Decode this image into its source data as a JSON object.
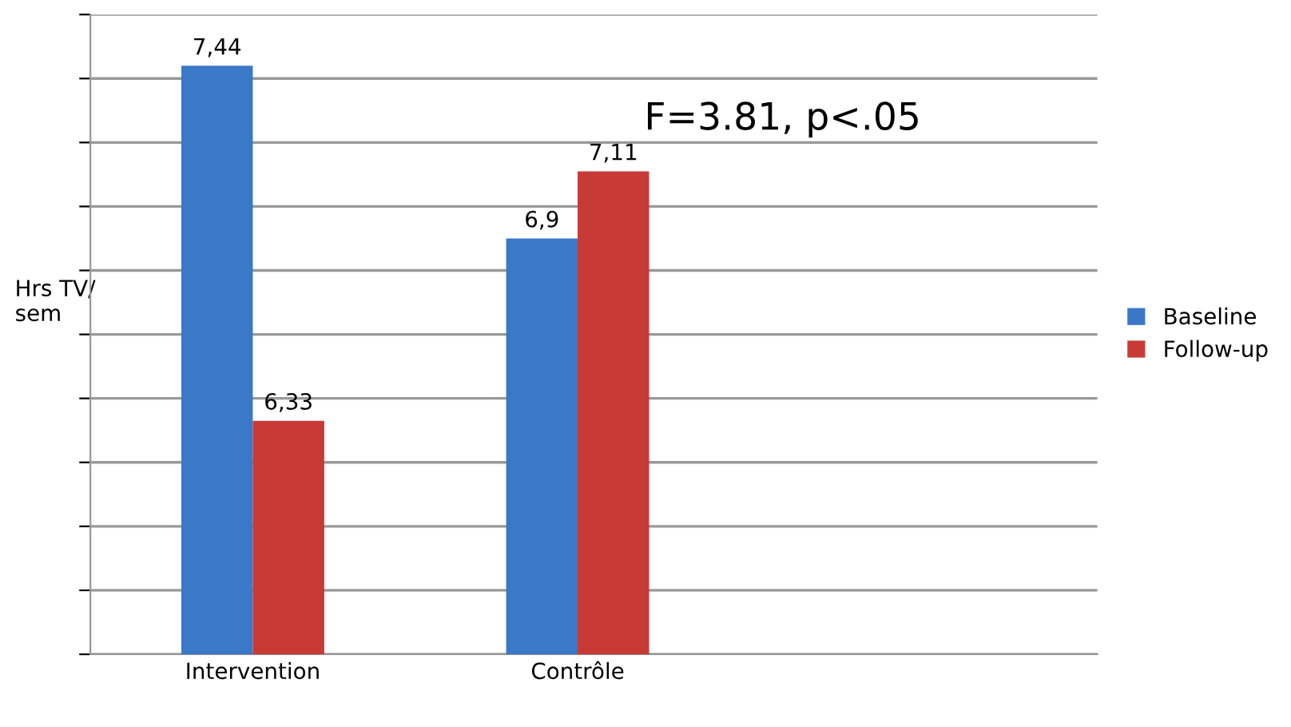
{
  "chart_data": {
    "type": "bar",
    "ylabel": "Hrs TV/\nsem",
    "categories": [
      "Intervention",
      "Contrôle"
    ],
    "series": [
      {
        "name": "Baseline",
        "color": "#3a78c8",
        "values": [
          7.44,
          6.9
        ],
        "value_labels": [
          "7,44",
          "6,9"
        ]
      },
      {
        "name": "Follow-up",
        "color": "#c83a36",
        "values": [
          6.33,
          7.11
        ],
        "value_labels": [
          "6,33",
          "7,11"
        ]
      }
    ],
    "ylim": [
      5.6,
      7.6
    ],
    "yticks": [
      {
        "value": 5.6,
        "label": null
      },
      {
        "value": 5.8,
        "label": null
      },
      {
        "value": 6.0,
        "label": null
      },
      {
        "value": 6.2,
        "label": null
      },
      {
        "value": 6.4,
        "label": null
      },
      {
        "value": 6.6,
        "label": null
      },
      {
        "value": 6.8,
        "label": null
      },
      {
        "value": 7.0,
        "label": null
      },
      {
        "value": 7.2,
        "label": null
      },
      {
        "value": 7.4,
        "label": null
      },
      {
        "value": 7.6,
        "label": null
      }
    ],
    "grid": "y",
    "legend": "right",
    "annotations": [
      "F=3.81, p<.05"
    ]
  }
}
